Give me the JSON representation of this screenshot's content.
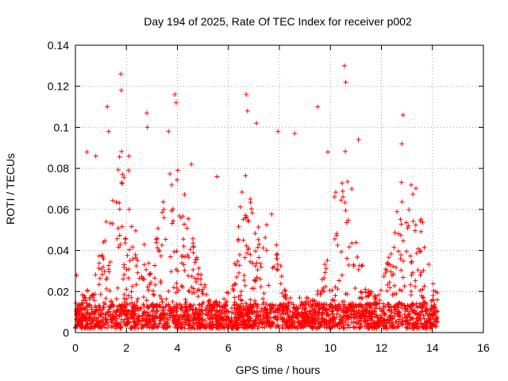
{
  "chart_data": {
    "type": "scatter",
    "title": "Day 194 of 2025, Rate Of TEC Index for receiver p002",
    "xlabel": "GPS time / hours",
    "ylabel": "ROTI / TECUs",
    "xlim": [
      0,
      16
    ],
    "ylim": [
      0,
      0.14
    ],
    "xticks": [
      0,
      2,
      4,
      6,
      8,
      10,
      12,
      14,
      16
    ],
    "yticks": [
      0,
      0.02,
      0.04,
      0.06,
      0.08,
      0.1,
      0.12,
      0.14
    ],
    "xtick_labels": [
      "0",
      "2",
      "4",
      "6",
      "8",
      "10",
      "12",
      "14",
      "16"
    ],
    "ytick_labels": [
      "0",
      "0.02",
      "0.04",
      "0.06",
      "0.08",
      "0.1",
      "0.12",
      "0.14"
    ],
    "grid": true,
    "marker": "+",
    "color": "#ff0000",
    "data_range_hours": [
      0,
      14.2
    ],
    "series": [
      {
        "name": "ROTI",
        "notable_points": [
          {
            "x": 0.05,
            "y": 0.028
          },
          {
            "x": 0.45,
            "y": 0.088
          },
          {
            "x": 0.8,
            "y": 0.086
          },
          {
            "x": 1.25,
            "y": 0.11
          },
          {
            "x": 1.3,
            "y": 0.098
          },
          {
            "x": 1.78,
            "y": 0.126
          },
          {
            "x": 1.8,
            "y": 0.118
          },
          {
            "x": 2.1,
            "y": 0.086
          },
          {
            "x": 2.8,
            "y": 0.107
          },
          {
            "x": 2.82,
            "y": 0.1
          },
          {
            "x": 3.65,
            "y": 0.098
          },
          {
            "x": 3.9,
            "y": 0.116
          },
          {
            "x": 3.95,
            "y": 0.112
          },
          {
            "x": 4.55,
            "y": 0.082
          },
          {
            "x": 5.55,
            "y": 0.076
          },
          {
            "x": 6.7,
            "y": 0.116
          },
          {
            "x": 6.75,
            "y": 0.108
          },
          {
            "x": 7.1,
            "y": 0.102
          },
          {
            "x": 7.95,
            "y": 0.098
          },
          {
            "x": 8.6,
            "y": 0.097
          },
          {
            "x": 9.5,
            "y": 0.11
          },
          {
            "x": 9.9,
            "y": 0.088
          },
          {
            "x": 10.55,
            "y": 0.13
          },
          {
            "x": 10.6,
            "y": 0.122
          },
          {
            "x": 11.1,
            "y": 0.094
          },
          {
            "x": 12.85,
            "y": 0.106
          },
          {
            "x": 12.8,
            "y": 0.092
          }
        ]
      }
    ]
  }
}
